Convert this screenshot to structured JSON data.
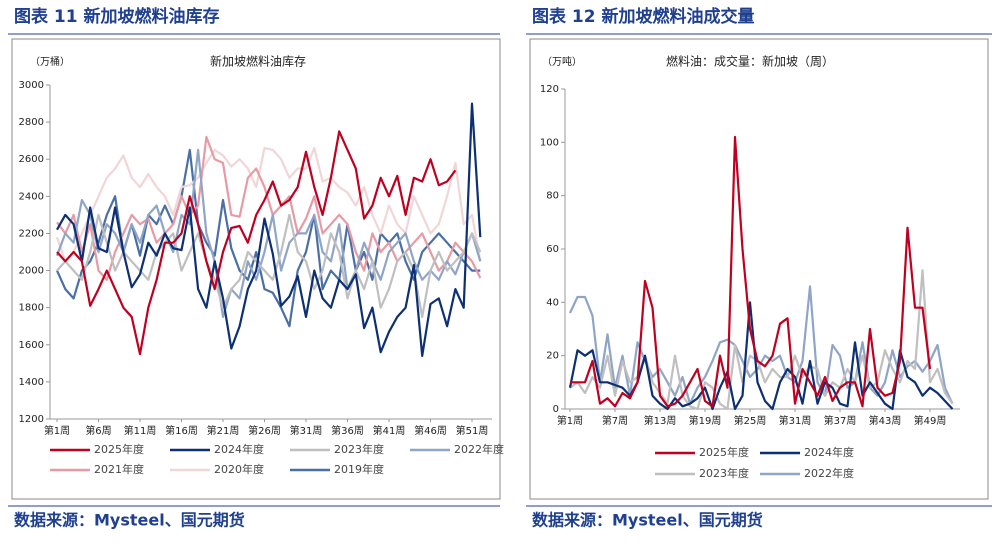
{
  "chart_data": [
    {
      "type": "line",
      "caption": "图表 11 新加坡燃料油库存",
      "title": "新加坡燃料油库存",
      "y_unit": "（万桶）",
      "source": "数据来源：Mysteel、国元期货",
      "categories": [
        "第1周",
        null,
        null,
        null,
        null,
        "第6周",
        null,
        null,
        null,
        null,
        "第11周",
        null,
        null,
        null,
        null,
        "第16周",
        null,
        null,
        null,
        null,
        "第21周",
        null,
        null,
        null,
        null,
        "第26周",
        null,
        null,
        null,
        null,
        "第31周",
        null,
        null,
        null,
        null,
        "第36周",
        null,
        null,
        null,
        null,
        "第41周",
        null,
        null,
        null,
        null,
        "第46周",
        null,
        null,
        null,
        null,
        "第51周",
        null
      ],
      "ylim": [
        1200,
        3000
      ],
      "yticks": [
        1200,
        1400,
        1600,
        1800,
        2000,
        2200,
        2400,
        2600,
        2800,
        3000
      ],
      "series": [
        {
          "name": "2025年度",
          "color": "#c00020",
          "values": [
            2100,
            2050,
            2100,
            2050,
            1810,
            1900,
            2000,
            1900,
            1800,
            1750,
            1550,
            1800,
            1950,
            2150,
            2150,
            2200,
            2400,
            2250,
            2050,
            1900,
            2100,
            2230,
            2240,
            2150,
            2300,
            2380,
            2480,
            2350,
            2380,
            2450,
            2640,
            2450,
            2300,
            2500,
            2750,
            2650,
            2550,
            2280,
            2350,
            2500,
            2400,
            2510,
            2300,
            2500,
            2480,
            2600,
            2460,
            2480,
            2540,
            null,
            null,
            null
          ]
        },
        {
          "name": "2024年度",
          "color": "#0d2f73",
          "values": [
            2220,
            2300,
            2250,
            2050,
            2340,
            2120,
            2100,
            2340,
            2100,
            1910,
            1980,
            2150,
            2080,
            2200,
            2120,
            2110,
            2340,
            1900,
            1800,
            2050,
            1850,
            1580,
            1700,
            1900,
            2000,
            2280,
            2090,
            1810,
            1860,
            1970,
            1750,
            2000,
            1850,
            1800,
            1950,
            1900,
            1980,
            1690,
            1800,
            1560,
            1670,
            1750,
            1800,
            2030,
            1540,
            1820,
            1850,
            1700,
            1900,
            1800,
            2900,
            2180
          ]
        },
        {
          "name": "2023年度",
          "color": "#bfbfbf",
          "values": [
            2000,
            2050,
            2000,
            1950,
            2100,
            2300,
            2150,
            2000,
            2100,
            2050,
            2000,
            1950,
            2100,
            2150,
            2200,
            2000,
            2100,
            2200,
            2050,
            1950,
            1800,
            1900,
            1950,
            2100,
            2050,
            2000,
            1950,
            2100,
            2300,
            2100,
            2050,
            1900,
            2000,
            2200,
            2100,
            1850,
            2000,
            1900,
            2050,
            1800,
            1900,
            2050,
            2100,
            2000,
            1750,
            2000,
            2100,
            2000,
            2050,
            2100,
            2200,
            2100
          ]
        },
        {
          "name": "2022年度",
          "color": "#8fa5c8",
          "values": [
            2080,
            2200,
            2150,
            2380,
            2300,
            2100,
            2250,
            2200,
            2100,
            2250,
            2150,
            2300,
            2350,
            2200,
            2100,
            2300,
            2250,
            2650,
            2200,
            2050,
            1750,
            1900,
            1850,
            2050,
            1950,
            2100,
            2300,
            2000,
            2150,
            2200,
            2200,
            2300,
            2100,
            2050,
            2250,
            1900,
            2000,
            2150,
            2050,
            1950,
            2100,
            2150,
            2200,
            2050,
            1950,
            2000,
            1950,
            2050,
            1980,
            2100,
            2200,
            2050
          ]
        },
        {
          "name": "2021年度",
          "color": "#e89aa4",
          "values": [
            2260,
            2200,
            2300,
            2100,
            2250,
            2000,
            1950,
            2100,
            2200,
            2300,
            2250,
            2280,
            2150,
            2200,
            2250,
            2400,
            2300,
            2350,
            2720,
            2600,
            2580,
            2300,
            2290,
            2500,
            2550,
            2450,
            2300,
            2350,
            2400,
            2200,
            2280,
            2400,
            2200,
            2250,
            2300,
            2250,
            2100,
            2000,
            2200,
            2100,
            2150,
            2050,
            2100,
            2150,
            2200,
            2100,
            2000,
            2050,
            2150,
            2100,
            2050,
            1960
          ]
        },
        {
          "name": "2020年度",
          "color": "#f0d6d6",
          "values": [
            2180,
            2050,
            2100,
            2200,
            2300,
            2400,
            2500,
            2550,
            2620,
            2500,
            2450,
            2520,
            2450,
            2400,
            2300,
            2450,
            2460,
            2500,
            2580,
            2650,
            2620,
            2560,
            2600,
            2550,
            2450,
            2660,
            2650,
            2600,
            2500,
            2550,
            2550,
            2660,
            2480,
            2500,
            2450,
            2420,
            2350,
            2450,
            2300,
            2200,
            2350,
            2250,
            2200,
            2400,
            2300,
            2200,
            2250,
            2400,
            2580,
            2250,
            2300,
            2050
          ]
        },
        {
          "name": "2019年度",
          "color": "#4a6fa5",
          "values": [
            2000,
            1900,
            1850,
            2000,
            2050,
            2150,
            2300,
            2400,
            2100,
            2250,
            2080,
            2300,
            2250,
            2350,
            2250,
            2400,
            2650,
            2250,
            2150,
            2080,
            2380,
            2120,
            2000,
            1950,
            2100,
            1900,
            1880,
            1800,
            1700,
            2000,
            2100,
            2300,
            1900,
            2000,
            1950,
            2250,
            2000,
            2100,
            1950,
            2200,
            2150,
            2200,
            2050,
            1950,
            2100,
            2150,
            2200,
            2150,
            2100,
            2050,
            2000,
            2000
          ]
        }
      ]
    },
    {
      "type": "line",
      "caption": "图表 12 新加坡燃料油成交量",
      "title": "燃料油：成交量：新加坡（周）",
      "y_unit": "（万吨）",
      "source": "数据来源：Mysteel、国元期货",
      "categories": [
        "第1周",
        null,
        null,
        null,
        null,
        null,
        "第7周",
        null,
        null,
        null,
        null,
        null,
        "第13周",
        null,
        null,
        null,
        null,
        null,
        "第19周",
        null,
        null,
        null,
        null,
        null,
        "第25周",
        null,
        null,
        null,
        null,
        null,
        "第31周",
        null,
        null,
        null,
        null,
        null,
        "第37周",
        null,
        null,
        null,
        null,
        null,
        "第43周",
        null,
        null,
        null,
        null,
        null,
        "第49周",
        null,
        null,
        null
      ],
      "ylim": [
        0,
        120
      ],
      "yticks": [
        0,
        20,
        40,
        60,
        80,
        100,
        120
      ],
      "series": [
        {
          "name": "2025年度",
          "color": "#c00020",
          "values": [
            10,
            10,
            10,
            18,
            2,
            4,
            1,
            6,
            4,
            10,
            48,
            38,
            5,
            1,
            2,
            5,
            10,
            15,
            3,
            1,
            20,
            8,
            102,
            60,
            30,
            18,
            16,
            20,
            32,
            34,
            2,
            15,
            10,
            5,
            12,
            3,
            8,
            10,
            10,
            1,
            30,
            8,
            5,
            6,
            18,
            68,
            38,
            38,
            15,
            null,
            null,
            null
          ]
        },
        {
          "name": "2024年度",
          "color": "#0d2f73",
          "values": [
            8,
            22,
            20,
            22,
            10,
            10,
            9,
            8,
            5,
            10,
            20,
            5,
            2,
            0,
            4,
            1,
            2,
            4,
            8,
            0,
            8,
            14,
            0,
            5,
            40,
            10,
            3,
            0,
            10,
            15,
            12,
            2,
            18,
            2,
            10,
            8,
            2,
            1,
            25,
            5,
            10,
            6,
            2,
            0,
            22,
            12,
            10,
            5,
            8,
            6,
            3,
            0
          ]
        },
        {
          "name": "2023年度",
          "color": "#bfbfbf",
          "values": [
            8,
            10,
            6,
            12,
            8,
            20,
            5,
            18,
            10,
            12,
            20,
            10,
            6,
            2,
            20,
            5,
            1,
            0,
            10,
            8,
            2,
            0,
            24,
            10,
            20,
            18,
            10,
            15,
            12,
            12,
            20,
            12,
            16,
            15,
            5,
            10,
            8,
            15,
            10,
            20,
            8,
            10,
            22,
            15,
            10,
            18,
            15,
            52,
            10,
            15,
            6,
            2
          ]
        },
        {
          "name": "2022年度",
          "color": "#8fa5c8",
          "values": [
            36,
            42,
            42,
            35,
            10,
            28,
            8,
            20,
            5,
            25,
            18,
            12,
            15,
            10,
            5,
            12,
            2,
            8,
            12,
            18,
            25,
            26,
            24,
            18,
            12,
            15,
            20,
            18,
            20,
            12,
            10,
            18,
            46,
            10,
            5,
            24,
            20,
            8,
            10,
            25,
            8,
            5,
            10,
            22,
            12,
            16,
            18,
            14,
            18,
            24,
            8,
            2
          ]
        }
      ]
    }
  ]
}
